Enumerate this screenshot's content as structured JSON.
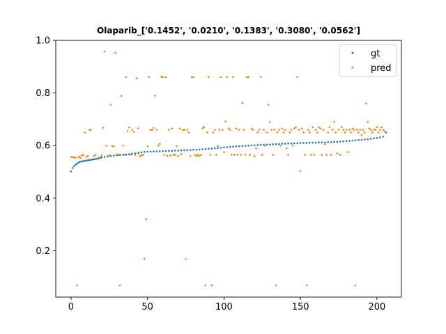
{
  "chart_data": {
    "type": "scatter",
    "title": "Olaparib_['0.1452', '0.0210', '0.1383', '0.3080', '0.0562']",
    "xlabel": "",
    "ylabel": "",
    "xlim": [
      -10,
      216
    ],
    "ylim": [
      0.024,
      1.0
    ],
    "xticks": [
      0,
      50,
      100,
      150,
      200
    ],
    "yticks": [
      0.2,
      0.4,
      0.6,
      0.8,
      1.0
    ],
    "xtick_labels": [
      "0",
      "50",
      "100",
      "150",
      "200"
    ],
    "ytick_labels": [
      "0.2",
      "0.4",
      "0.6",
      "0.8",
      "1.0"
    ],
    "grid": false,
    "legend_position": "top-right",
    "series": [
      {
        "name": "gt",
        "color": "#1f77b4",
        "points": [
          [
            0,
            0.502
          ],
          [
            1,
            0.515
          ],
          [
            2,
            0.522
          ],
          [
            3,
            0.528
          ],
          [
            4,
            0.532
          ],
          [
            5,
            0.536
          ],
          [
            6,
            0.538
          ],
          [
            7,
            0.54
          ],
          [
            8,
            0.541
          ],
          [
            9,
            0.542
          ],
          [
            10,
            0.543
          ],
          [
            11,
            0.544
          ],
          [
            12,
            0.545
          ],
          [
            13,
            0.546
          ],
          [
            14,
            0.547
          ],
          [
            15,
            0.548
          ],
          [
            16,
            0.549
          ],
          [
            17,
            0.55
          ],
          [
            18,
            0.552
          ],
          [
            19,
            0.553
          ],
          [
            20,
            0.555
          ],
          [
            22,
            0.557
          ],
          [
            24,
            0.559
          ],
          [
            26,
            0.56
          ],
          [
            28,
            0.562
          ],
          [
            30,
            0.563
          ],
          [
            32,
            0.564
          ],
          [
            34,
            0.565
          ],
          [
            36,
            0.566
          ],
          [
            38,
            0.567
          ],
          [
            40,
            0.569
          ],
          [
            42,
            0.57
          ],
          [
            44,
            0.572
          ],
          [
            46,
            0.574
          ],
          [
            48,
            0.576
          ],
          [
            50,
            0.577
          ],
          [
            52,
            0.577
          ],
          [
            54,
            0.578
          ],
          [
            56,
            0.578
          ],
          [
            58,
            0.578
          ],
          [
            60,
            0.579
          ],
          [
            62,
            0.579
          ],
          [
            64,
            0.58
          ],
          [
            66,
            0.58
          ],
          [
            68,
            0.581
          ],
          [
            70,
            0.581
          ],
          [
            72,
            0.582
          ],
          [
            74,
            0.582
          ],
          [
            76,
            0.583
          ],
          [
            78,
            0.583
          ],
          [
            80,
            0.584
          ],
          [
            82,
            0.584
          ],
          [
            84,
            0.585
          ],
          [
            86,
            0.586
          ],
          [
            88,
            0.587
          ],
          [
            90,
            0.588
          ],
          [
            92,
            0.589
          ],
          [
            94,
            0.59
          ],
          [
            96,
            0.591
          ],
          [
            98,
            0.592
          ],
          [
            100,
            0.593
          ],
          [
            102,
            0.594
          ],
          [
            104,
            0.595
          ],
          [
            106,
            0.596
          ],
          [
            108,
            0.597
          ],
          [
            110,
            0.598
          ],
          [
            112,
            0.598
          ],
          [
            114,
            0.599
          ],
          [
            116,
            0.6
          ],
          [
            118,
            0.601
          ],
          [
            120,
            0.601
          ],
          [
            122,
            0.602
          ],
          [
            124,
            0.603
          ],
          [
            126,
            0.603
          ],
          [
            128,
            0.604
          ],
          [
            130,
            0.604
          ],
          [
            132,
            0.605
          ],
          [
            134,
            0.606
          ],
          [
            136,
            0.606
          ],
          [
            138,
            0.607
          ],
          [
            140,
            0.607
          ],
          [
            142,
            0.608
          ],
          [
            144,
            0.608
          ],
          [
            146,
            0.609
          ],
          [
            148,
            0.609
          ],
          [
            150,
            0.61
          ],
          [
            152,
            0.61
          ],
          [
            154,
            0.61
          ],
          [
            156,
            0.611
          ],
          [
            158,
            0.611
          ],
          [
            160,
            0.611
          ],
          [
            162,
            0.612
          ],
          [
            164,
            0.612
          ],
          [
            166,
            0.612
          ],
          [
            168,
            0.613
          ],
          [
            170,
            0.613
          ],
          [
            172,
            0.614
          ],
          [
            174,
            0.614
          ],
          [
            176,
            0.615
          ],
          [
            178,
            0.616
          ],
          [
            180,
            0.617
          ],
          [
            182,
            0.618
          ],
          [
            184,
            0.619
          ],
          [
            186,
            0.62
          ],
          [
            188,
            0.621
          ],
          [
            190,
            0.622
          ],
          [
            192,
            0.623
          ],
          [
            194,
            0.624
          ],
          [
            196,
            0.626
          ],
          [
            198,
            0.628
          ],
          [
            200,
            0.629
          ],
          [
            202,
            0.631
          ],
          [
            204,
            0.634
          ],
          [
            206,
            0.65
          ]
        ]
      },
      {
        "name": "pred",
        "color": "#ff7f0e",
        "points": [
          [
            0,
            0.557
          ],
          [
            1,
            0.556
          ],
          [
            2,
            0.555
          ],
          [
            3,
            0.554
          ],
          [
            4,
            0.069
          ],
          [
            5,
            0.558
          ],
          [
            6,
            0.553
          ],
          [
            7,
            0.562
          ],
          [
            8,
            0.565
          ],
          [
            9,
            0.65
          ],
          [
            10,
            0.557
          ],
          [
            11,
            0.561
          ],
          [
            12,
            0.66
          ],
          [
            13,
            0.659
          ],
          [
            15,
            0.56
          ],
          [
            16,
            0.565
          ],
          [
            18,
            0.555
          ],
          [
            20,
            0.562
          ],
          [
            21,
            0.668
          ],
          [
            22,
            0.958
          ],
          [
            23,
            0.6
          ],
          [
            25,
            0.564
          ],
          [
            26,
            0.756
          ],
          [
            27,
            0.599
          ],
          [
            28,
            0.597
          ],
          [
            29,
            0.953
          ],
          [
            30,
            0.567
          ],
          [
            31,
            0.565
          ],
          [
            32,
            0.069
          ],
          [
            33,
            0.789
          ],
          [
            34,
            0.6
          ],
          [
            35,
            0.565
          ],
          [
            36,
            0.86
          ],
          [
            37,
            0.655
          ],
          [
            38,
            0.669
          ],
          [
            39,
            0.565
          ],
          [
            40,
            0.66
          ],
          [
            41,
            0.652
          ],
          [
            42,
            0.565
          ],
          [
            43,
            0.856
          ],
          [
            44,
            0.666
          ],
          [
            45,
            0.56
          ],
          [
            46,
            0.562
          ],
          [
            47,
            0.565
          ],
          [
            48,
            0.17
          ],
          [
            49,
            0.32
          ],
          [
            50,
            0.598
          ],
          [
            51,
            0.86
          ],
          [
            52,
            0.66
          ],
          [
            53,
            0.659
          ],
          [
            54,
            0.667
          ],
          [
            55,
            0.79
          ],
          [
            56,
            0.66
          ],
          [
            57,
            0.6
          ],
          [
            58,
            0.607
          ],
          [
            59,
            0.862
          ],
          [
            60,
            0.86
          ],
          [
            61,
            0.565
          ],
          [
            62,
            0.86
          ],
          [
            63,
            0.561
          ],
          [
            64,
            0.66
          ],
          [
            65,
            0.562
          ],
          [
            66,
            0.665
          ],
          [
            67,
            0.565
          ],
          [
            68,
            0.565
          ],
          [
            69,
            0.598
          ],
          [
            70,
            0.56
          ],
          [
            71,
            0.665
          ],
          [
            72,
            0.568
          ],
          [
            73,
            0.659
          ],
          [
            74,
            0.66
          ],
          [
            75,
            0.168
          ],
          [
            76,
            0.66
          ],
          [
            77,
            0.65
          ],
          [
            78,
            0.56
          ],
          [
            79,
            0.86
          ],
          [
            80,
            0.86
          ],
          [
            81,
            0.565
          ],
          [
            82,
            0.56
          ],
          [
            83,
            0.565
          ],
          [
            84,
            0.56
          ],
          [
            85,
            0.565
          ],
          [
            86,
            0.666
          ],
          [
            87,
            0.67
          ],
          [
            88,
            0.069
          ],
          [
            89,
            0.65
          ],
          [
            90,
            0.86
          ],
          [
            91,
            0.565
          ],
          [
            92,
            0.069
          ],
          [
            93,
            0.65
          ],
          [
            94,
            0.66
          ],
          [
            95,
            0.565
          ],
          [
            96,
            0.599
          ],
          [
            97,
            0.66
          ],
          [
            98,
            0.86
          ],
          [
            99,
            0.66
          ],
          [
            100,
            0.575
          ],
          [
            101,
            0.692
          ],
          [
            102,
            0.86
          ],
          [
            103,
            0.665
          ],
          [
            104,
            0.66
          ],
          [
            105,
            0.565
          ],
          [
            106,
            0.86
          ],
          [
            107,
            0.565
          ],
          [
            108,
            0.665
          ],
          [
            109,
            0.565
          ],
          [
            110,
            0.66
          ],
          [
            111,
            0.565
          ],
          [
            112,
            0.762
          ],
          [
            113,
            0.66
          ],
          [
            114,
            0.565
          ],
          [
            115,
            0.86
          ],
          [
            116,
            0.86
          ],
          [
            117,
            0.565
          ],
          [
            118,
            0.665
          ],
          [
            119,
            0.66
          ],
          [
            120,
            0.56
          ],
          [
            121,
            0.59
          ],
          [
            122,
            0.65
          ],
          [
            123,
            0.66
          ],
          [
            124,
            0.86
          ],
          [
            125,
            0.565
          ],
          [
            126,
            0.66
          ],
          [
            127,
            0.6
          ],
          [
            128,
            0.65
          ],
          [
            129,
            0.755
          ],
          [
            130,
            0.69
          ],
          [
            131,
            0.66
          ],
          [
            132,
            0.565
          ],
          [
            133,
            0.66
          ],
          [
            134,
            0.069
          ],
          [
            135,
            0.65
          ],
          [
            136,
            0.66
          ],
          [
            137,
            0.6
          ],
          [
            138,
            0.665
          ],
          [
            139,
            0.65
          ],
          [
            140,
            0.66
          ],
          [
            141,
            0.59
          ],
          [
            142,
            0.565
          ],
          [
            143,
            0.65
          ],
          [
            144,
            0.66
          ],
          [
            145,
            0.6
          ],
          [
            146,
            0.665
          ],
          [
            147,
            0.67
          ],
          [
            148,
            0.86
          ],
          [
            149,
            0.66
          ],
          [
            150,
            0.504
          ],
          [
            151,
            0.665
          ],
          [
            152,
            0.65
          ],
          [
            153,
            0.565
          ],
          [
            154,
            0.069
          ],
          [
            155,
            0.66
          ],
          [
            156,
            0.65
          ],
          [
            157,
            0.565
          ],
          [
            158,
            0.67
          ],
          [
            159,
            0.565
          ],
          [
            160,
            0.66
          ],
          [
            161,
            0.65
          ],
          [
            162,
            0.67
          ],
          [
            163,
            0.665
          ],
          [
            164,
            0.565
          ],
          [
            165,
            0.66
          ],
          [
            166,
            0.605
          ],
          [
            167,
            0.565
          ],
          [
            168,
            0.65
          ],
          [
            169,
            0.67
          ],
          [
            170,
            0.565
          ],
          [
            171,
            0.66
          ],
          [
            172,
            0.69
          ],
          [
            173,
            0.65
          ],
          [
            174,
            0.57
          ],
          [
            175,
            0.66
          ],
          [
            176,
            0.565
          ],
          [
            177,
            0.67
          ],
          [
            178,
            0.66
          ],
          [
            179,
            0.65
          ],
          [
            180,
            0.66
          ],
          [
            181,
            0.575
          ],
          [
            182,
            0.66
          ],
          [
            183,
            0.65
          ],
          [
            184,
            0.665
          ],
          [
            185,
            0.66
          ],
          [
            186,
            0.069
          ],
          [
            187,
            0.66
          ],
          [
            188,
            0.65
          ],
          [
            189,
            0.66
          ],
          [
            190,
            0.64
          ],
          [
            191,
            0.66
          ],
          [
            192,
            0.65
          ],
          [
            193,
            0.76
          ],
          [
            194,
            0.69
          ],
          [
            195,
            0.665
          ],
          [
            196,
            0.66
          ],
          [
            197,
            0.65
          ],
          [
            198,
            0.66
          ],
          [
            199,
            0.66
          ],
          [
            200,
            0.67
          ],
          [
            201,
            0.65
          ],
          [
            202,
            0.66
          ],
          [
            203,
            0.67
          ],
          [
            204,
            0.66
          ],
          [
            205,
            0.655
          ]
        ]
      }
    ]
  }
}
